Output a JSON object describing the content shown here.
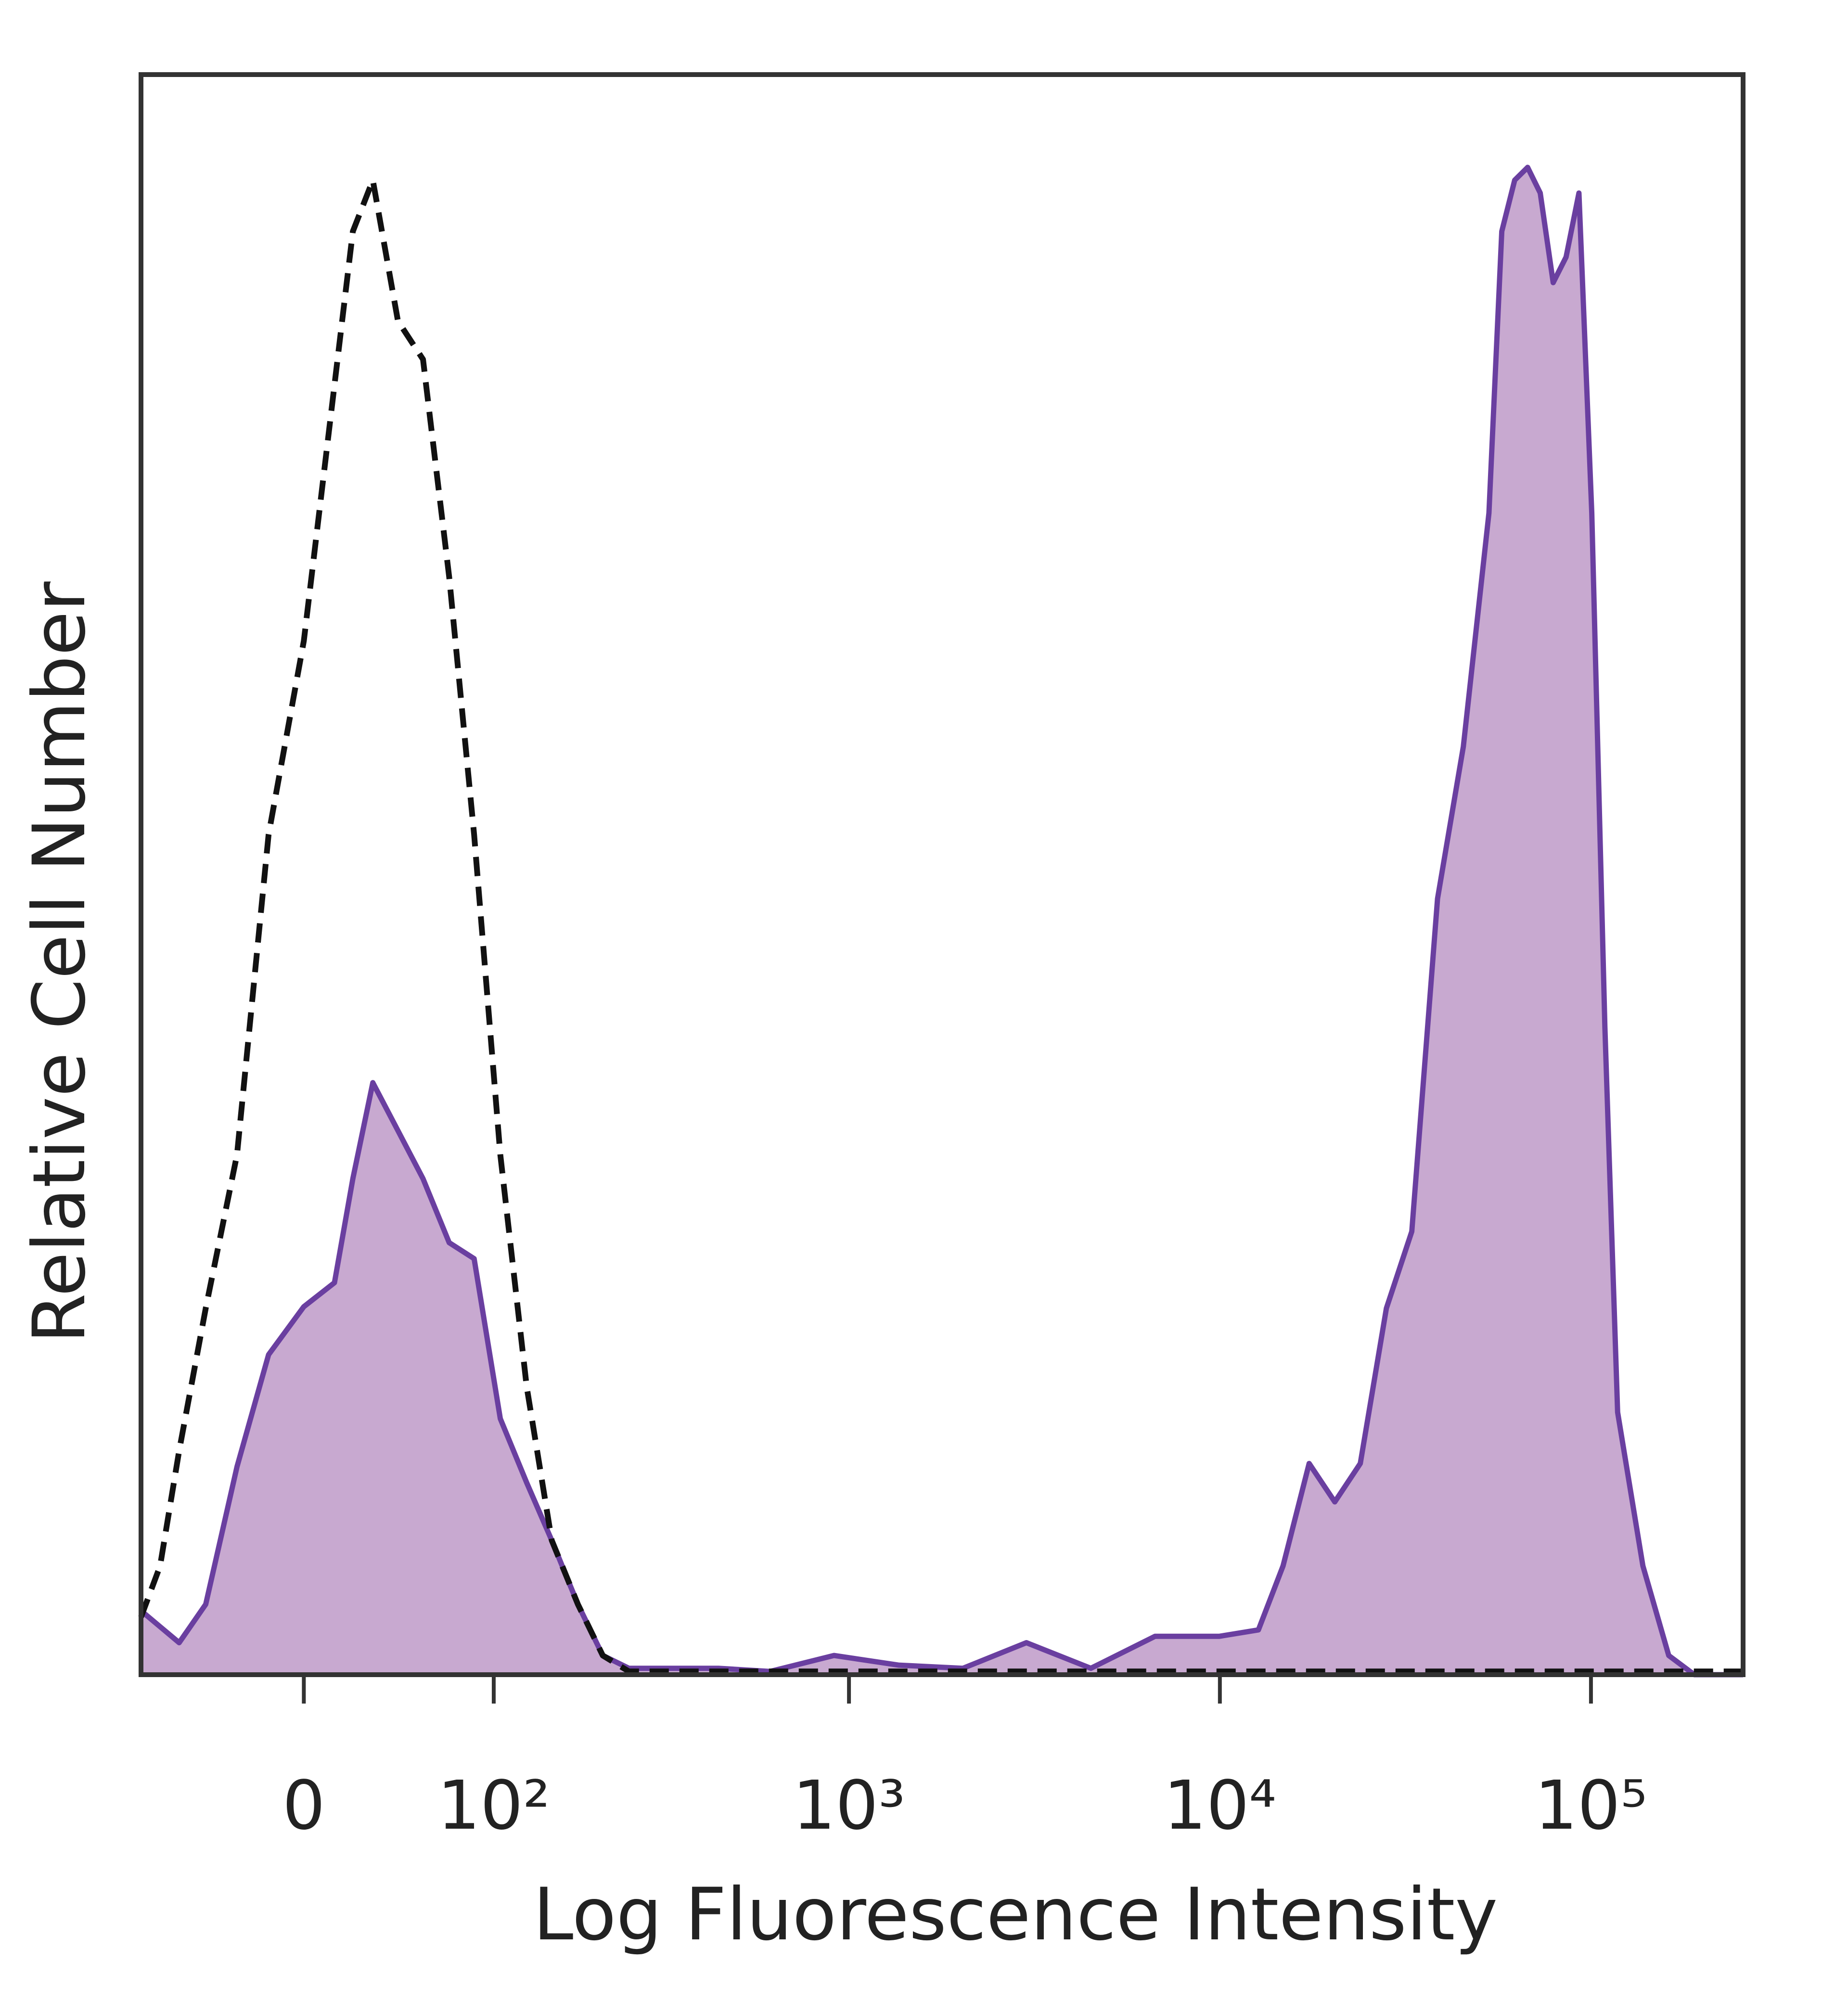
{
  "chart_data": {
    "type": "histogram-overlay",
    "xlabel": "Log Fluorescence Intensity",
    "ylabel": "Relative Cell Number",
    "xscale": "biexponential",
    "xlim": [
      -81,
      257000
    ],
    "ylim": [
      0,
      100
    ],
    "xticks": [
      0,
      {
        "value": 100,
        "label": "10²"
      },
      {
        "value": 1000,
        "label": "10³"
      },
      {
        "value": 10000,
        "label": "10⁴"
      },
      {
        "value": 100000,
        "label": "10⁵"
      }
    ],
    "x": [
      -81,
      -69,
      -58,
      -44,
      -29,
      -15,
      0,
      13,
      21,
      30,
      42,
      55,
      70,
      86,
      105,
      127,
      151,
      180,
      212,
      251,
      320,
      443,
      611,
      911,
      1360,
      2030,
      3010,
      4490,
      6690,
      9970,
      12700,
      14800,
      17400,
      20400,
      23900,
      28100,
      32900,
      38600,
      45300,
      53100,
      57500,
      62300,
      67500,
      73000,
      79100,
      85700,
      92800,
      100500,
      109000,
      118000,
      138000,
      162000,
      190000,
      223000,
      257000
    ],
    "series": [
      {
        "style": "filled",
        "color": "#6a3fa0",
        "fill": "#c8a9d0",
        "values": [
          4,
          3,
          2,
          4.4,
          13,
          20,
          23,
          24.5,
          31,
          37,
          34,
          31,
          27,
          26,
          16,
          12,
          8.4,
          4.4,
          1.2,
          0.4,
          0.4,
          0.4,
          0.2,
          1.2,
          0.6,
          0.4,
          2,
          0.4,
          2.4,
          2.4,
          2.8,
          6.8,
          13.2,
          10.8,
          13.2,
          22.9,
          27.7,
          48.5,
          58,
          72.6,
          90.2,
          93.4,
          94.2,
          92.6,
          87,
          88.6,
          92.6,
          72.6,
          40.5,
          16.4,
          6.8,
          1.2,
          0,
          0,
          0
        ]
      },
      {
        "style": "dashed",
        "color": "#111111",
        "values": [
          3.6,
          6.8,
          14,
          22.9,
          32.5,
          52.5,
          64.6,
          80.6,
          90.2,
          93.4,
          84.6,
          82.2,
          68.6,
          52.5,
          32.5,
          18,
          8.4,
          4.4,
          1.2,
          0.2,
          0.2,
          0.2,
          0.2,
          0.2,
          0.2,
          0.2,
          0.2,
          0.2,
          0.2,
          0.2,
          0.2,
          0.2,
          0.2,
          0.2,
          0.2,
          0.2,
          0.2,
          0.2,
          0.2,
          0.2,
          0.2,
          0.2,
          0.2,
          0.2,
          0.2,
          0.2,
          0.2,
          0.2,
          0.2,
          0.2,
          0.2,
          0.2,
          0.2,
          0.2,
          0.2
        ]
      }
    ]
  }
}
